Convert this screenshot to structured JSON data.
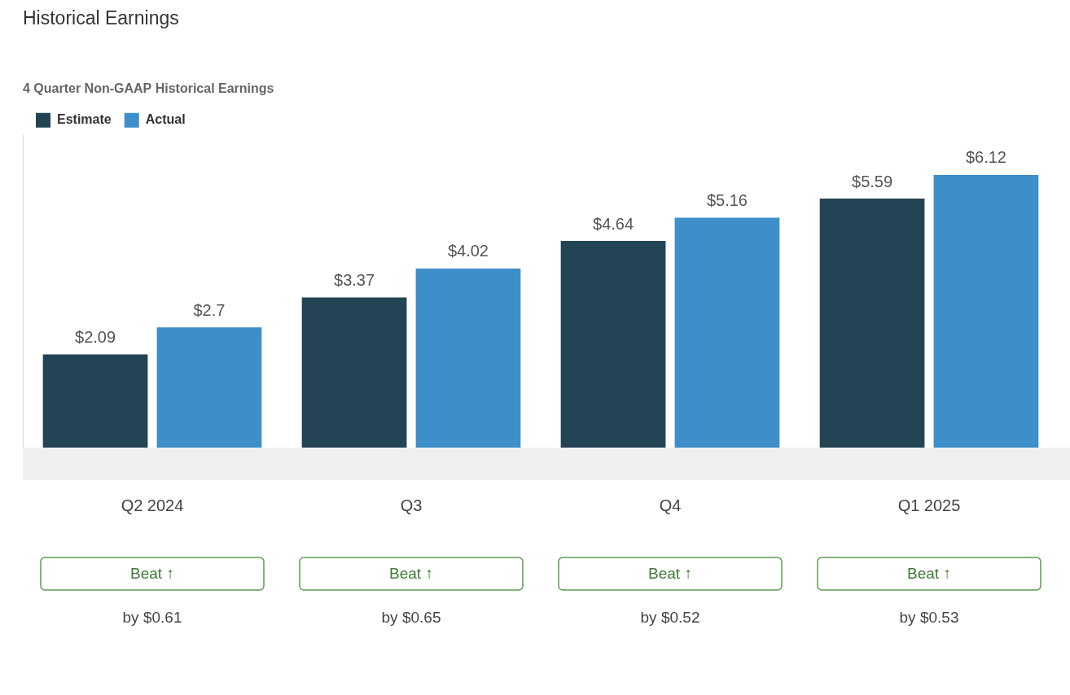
{
  "chart_data": {
    "type": "bar",
    "title": "Historical Earnings",
    "subtitle": "4 Quarter Non-GAAP Historical Earnings",
    "categories": [
      "Q2 2024",
      "Q3",
      "Q4",
      "Q1 2025"
    ],
    "series": [
      {
        "name": "Estimate",
        "color": "#224454",
        "values": [
          2.09,
          3.37,
          4.64,
          5.59
        ],
        "value_labels": [
          "$2.09",
          "$3.37",
          "$4.64",
          "$5.59"
        ]
      },
      {
        "name": "Actual",
        "color": "#3d8ec9",
        "values": [
          2.7,
          4.02,
          5.16,
          6.12
        ],
        "value_labels": [
          "$2.7",
          "$4.02",
          "$5.16",
          "$6.12"
        ]
      }
    ],
    "ylim": [
      0,
      7
    ],
    "grid": false,
    "legend": "top-left",
    "data_labels": true,
    "tick_labels": "x",
    "annotations": [
      {
        "badge": "Beat ↑",
        "text": "by $0.61"
      },
      {
        "badge": "Beat ↑",
        "text": "by $0.65"
      },
      {
        "badge": "Beat ↑",
        "text": "by $0.52"
      },
      {
        "badge": "Beat ↑",
        "text": "by $0.53"
      }
    ]
  }
}
